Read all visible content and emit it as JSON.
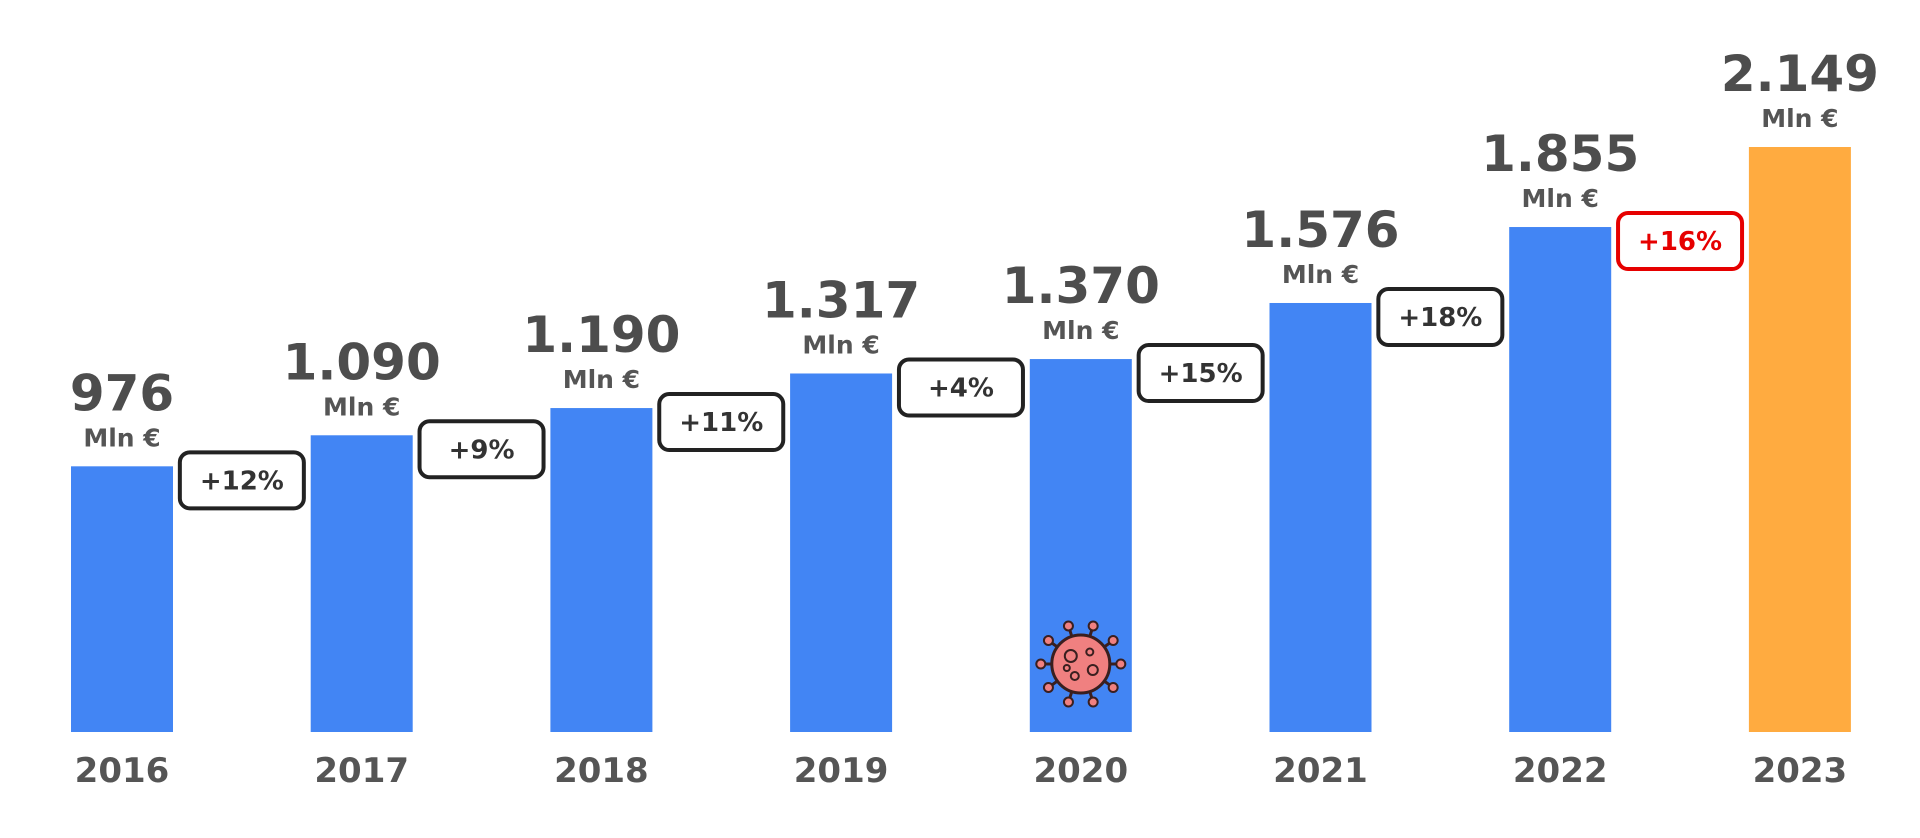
{
  "chart_data": {
    "type": "bar",
    "categories": [
      "2016",
      "2017",
      "2018",
      "2019",
      "2020",
      "2021",
      "2022",
      "2023"
    ],
    "values": [
      976,
      1090,
      1190,
      1317,
      1370,
      1576,
      1855,
      2149
    ],
    "value_labels": [
      "976",
      "1.090",
      "1.190",
      "1.317",
      "1.370",
      "1.576",
      "1.855",
      "2.149"
    ],
    "unit": "Mln €",
    "changes": [
      "+12%",
      "+9%",
      "+11%",
      "+4%",
      "+15%",
      "+18%",
      "+16%"
    ],
    "highlighted_change_index": 6,
    "highlighted_bar_index": 7,
    "annotation_icon": {
      "name": "virus-icon",
      "category": "2020"
    },
    "ylim": [
      0,
      2149
    ],
    "title": "",
    "xlabel": "",
    "ylabel": "",
    "grid": false,
    "legend": "none"
  },
  "colors": {
    "bar": "#4285f4",
    "highlight_bar": "#ffab40",
    "label": "#4d4d4d",
    "badge_border": "#222222",
    "badge_highlight": "#e60000",
    "virus_fill": "#f08080",
    "virus_stroke": "#3a1f1f"
  }
}
